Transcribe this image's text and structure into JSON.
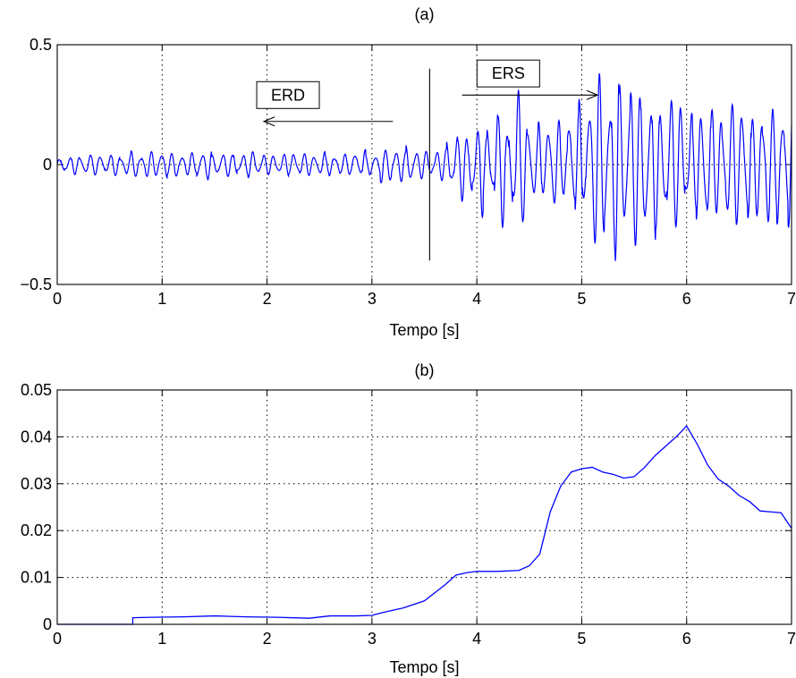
{
  "chart_data": [
    {
      "type": "line",
      "title": "(a)",
      "xlabel": "Tempo [s]",
      "ylabel": "",
      "xlim": [
        0,
        7
      ],
      "ylim": [
        -0.5,
        0.5
      ],
      "grid": true,
      "xticks": [
        0,
        1,
        2,
        3,
        4,
        5,
        6,
        7
      ],
      "xtick_labels": [
        "0",
        "1",
        "2",
        "3",
        "4",
        "5",
        "6",
        "7"
      ],
      "yticks": [
        0.5,
        0,
        -0.5
      ],
      "ytick_labels": [
        "0.5",
        "0",
        "−0.5"
      ],
      "line_color": "#0000ff",
      "signal_envelope": {
        "x": [
          0,
          0.5,
          1,
          1.5,
          2,
          2.5,
          3,
          3.2,
          3.5,
          3.8,
          4.0,
          4.2,
          4.4,
          4.6,
          4.8,
          5.0,
          5.2,
          5.4,
          5.6,
          5.8,
          6.0,
          6.2,
          6.4,
          6.6,
          6.8,
          7.0
        ],
        "y": [
          0.045,
          0.055,
          0.065,
          0.07,
          0.062,
          0.055,
          0.07,
          0.105,
          0.06,
          0.16,
          0.22,
          0.26,
          0.33,
          0.22,
          0.24,
          0.29,
          0.41,
          0.48,
          0.4,
          0.34,
          0.28,
          0.32,
          0.33,
          0.34,
          0.34,
          0.34
        ]
      },
      "annotations": {
        "erd_label": "ERD",
        "ers_label": "ERS",
        "divider_x": 3.55,
        "divider_y": [
          -0.4,
          0.4
        ],
        "erd_arrow": {
          "from": [
            3.2,
            0.18
          ],
          "to": [
            1.97,
            0.18
          ]
        },
        "ers_arrow": {
          "from": [
            3.86,
            0.29
          ],
          "to": [
            5.15,
            0.29
          ]
        },
        "erd_box_center": [
          2.2,
          0.29
        ],
        "ers_box_center": [
          4.3,
          0.38
        ]
      }
    },
    {
      "type": "line",
      "title": "(b)",
      "xlabel": "Tempo [s]",
      "ylabel": "",
      "xlim": [
        0,
        7
      ],
      "ylim": [
        0,
        0.05
      ],
      "grid": true,
      "xticks": [
        0,
        1,
        2,
        3,
        4,
        5,
        6,
        7
      ],
      "xtick_labels": [
        "0",
        "1",
        "2",
        "3",
        "4",
        "5",
        "6",
        "7"
      ],
      "yticks": [
        0.05,
        0.04,
        0.03,
        0.02,
        0.01,
        0
      ],
      "ytick_labels": [
        "0.05",
        "0.04",
        "0.03",
        "0.02",
        "0.01",
        "0"
      ],
      "line_color": "#0000ff",
      "x": [
        0,
        0.72,
        0.72,
        0.9,
        1.2,
        1.5,
        1.8,
        2.1,
        2.4,
        2.6,
        2.85,
        3.0,
        3.1,
        3.3,
        3.5,
        3.7,
        3.8,
        3.9,
        4.0,
        4.2,
        4.4,
        4.5,
        4.6,
        4.7,
        4.8,
        4.9,
        5.0,
        5.1,
        5.2,
        5.3,
        5.4,
        5.5,
        5.6,
        5.7,
        5.8,
        5.9,
        6.0,
        6.1,
        6.2,
        6.3,
        6.4,
        6.5,
        6.6,
        6.7,
        6.8,
        6.9,
        7.0
      ],
      "y": [
        0,
        0,
        0.0014,
        0.0015,
        0.0016,
        0.0018,
        0.0016,
        0.0015,
        0.0013,
        0.0018,
        0.0018,
        0.0019,
        0.0025,
        0.0035,
        0.005,
        0.0085,
        0.0105,
        0.011,
        0.0113,
        0.0113,
        0.0115,
        0.0125,
        0.015,
        0.024,
        0.0295,
        0.0325,
        0.0332,
        0.0335,
        0.0325,
        0.032,
        0.0312,
        0.0315,
        0.0335,
        0.036,
        0.038,
        0.04,
        0.0423,
        0.0385,
        0.034,
        0.031,
        0.0295,
        0.0275,
        0.0262,
        0.0242,
        0.024,
        0.0238,
        0.0205
      ]
    }
  ]
}
